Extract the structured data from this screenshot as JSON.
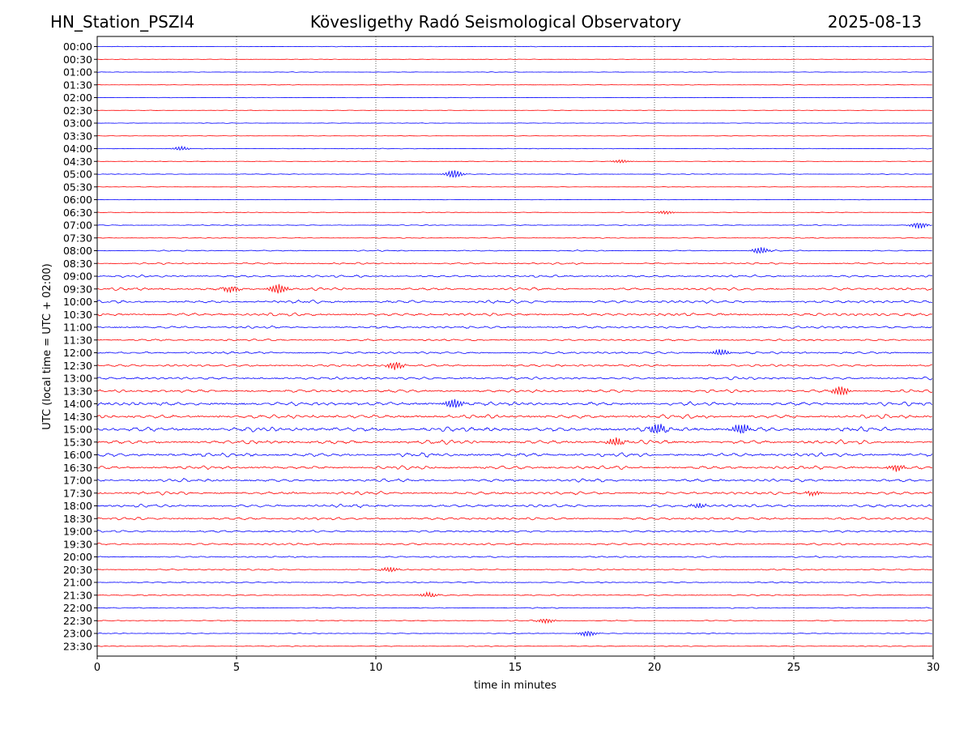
{
  "header": {
    "station": "HN_Station_PSZI4",
    "observatory": "Kövesligethy Radó Seismological Observatory",
    "date": "2025-08-13"
  },
  "chart_data": {
    "type": "line",
    "title": "Kövesligethy Radó Seismological Observatory",
    "xlabel": "time in minutes",
    "ylabel": "UTC (local time = UTC + 02:00)",
    "xlim": [
      0,
      30
    ],
    "xticks": [
      "0",
      "5",
      "10",
      "15",
      "20",
      "25",
      "30"
    ],
    "grid": "vertical dotted lines at 5-minute intervals",
    "legend": "none",
    "series_colors": [
      "#0000ff",
      "#ff0000"
    ],
    "rows": [
      "00:00",
      "00:30",
      "01:00",
      "01:30",
      "02:00",
      "02:30",
      "03:00",
      "03:30",
      "04:00",
      "04:30",
      "05:00",
      "05:30",
      "06:00",
      "06:30",
      "07:00",
      "07:30",
      "08:00",
      "08:30",
      "09:00",
      "09:30",
      "10:00",
      "10:30",
      "11:00",
      "11:30",
      "12:00",
      "12:30",
      "13:00",
      "13:30",
      "14:00",
      "14:30",
      "15:00",
      "15:30",
      "16:00",
      "16:30",
      "17:00",
      "17:30",
      "18:00",
      "18:30",
      "19:00",
      "19:30",
      "20:00",
      "20:30",
      "21:00",
      "21:30",
      "22:00",
      "22:30",
      "23:00",
      "23:30"
    ],
    "noise_level": [
      0.3,
      0.3,
      0.3,
      0.3,
      0.3,
      0.3,
      0.3,
      0.3,
      0.4,
      0.4,
      0.4,
      0.3,
      0.3,
      0.4,
      0.5,
      0.5,
      0.7,
      1.0,
      1.3,
      1.6,
      1.8,
      1.8,
      1.4,
      1.2,
      1.4,
      1.5,
      1.6,
      1.8,
      2.2,
      2.3,
      2.6,
      2.3,
      2.3,
      2.0,
      1.8,
      1.8,
      1.8,
      1.6,
      1.3,
      1.2,
      0.9,
      0.9,
      0.8,
      0.8,
      0.6,
      0.6,
      0.5,
      0.5
    ],
    "events": [
      {
        "row": 8,
        "t": 2.9,
        "amp": 2.5
      },
      {
        "row": 9,
        "t": 18.7,
        "amp": 2
      },
      {
        "row": 10,
        "t": 12.7,
        "amp": 5
      },
      {
        "row": 13,
        "t": 20.3,
        "amp": 2
      },
      {
        "row": 14,
        "t": 29.4,
        "amp": 4
      },
      {
        "row": 16,
        "t": 23.7,
        "amp": 4
      },
      {
        "row": 19,
        "t": 4.7,
        "amp": 4
      },
      {
        "row": 19,
        "t": 6.4,
        "amp": 6
      },
      {
        "row": 24,
        "t": 22.3,
        "amp": 4
      },
      {
        "row": 25,
        "t": 10.6,
        "amp": 5
      },
      {
        "row": 27,
        "t": 26.6,
        "amp": 6
      },
      {
        "row": 28,
        "t": 12.7,
        "amp": 6
      },
      {
        "row": 30,
        "t": 23.0,
        "amp": 7
      },
      {
        "row": 30,
        "t": 20.0,
        "amp": 6
      },
      {
        "row": 31,
        "t": 18.5,
        "amp": 5
      },
      {
        "row": 33,
        "t": 28.6,
        "amp": 4
      },
      {
        "row": 35,
        "t": 25.6,
        "amp": 3
      },
      {
        "row": 36,
        "t": 21.5,
        "amp": 3
      },
      {
        "row": 41,
        "t": 10.4,
        "amp": 3
      },
      {
        "row": 43,
        "t": 11.8,
        "amp": 3
      },
      {
        "row": 45,
        "t": 16.0,
        "amp": 3
      },
      {
        "row": 46,
        "t": 17.5,
        "amp": 3.5
      }
    ]
  }
}
